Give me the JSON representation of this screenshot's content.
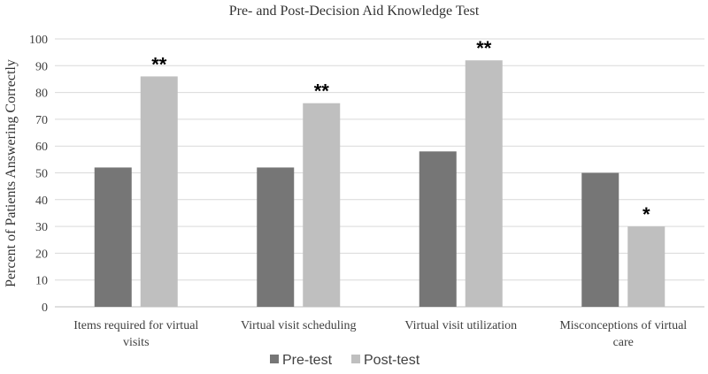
{
  "chart_data": {
    "type": "bar",
    "title": "Pre- and Post-Decision Aid Knowledge Test",
    "ylabel": "Percent of Patients Answering Correctly",
    "xlabel": "",
    "ylim": [
      0,
      100
    ],
    "yticks": [
      "0",
      "10",
      "20",
      "30",
      "40",
      "50",
      "60",
      "70",
      "80",
      "90",
      "100"
    ],
    "categories": [
      [
        "Items required for virtual",
        "visits"
      ],
      [
        "Virtual visit scheduling"
      ],
      [
        "Virtual visit utilization"
      ],
      [
        "Misconceptions of virtual",
        "care"
      ]
    ],
    "series": [
      {
        "name": "Pre-test",
        "color": "#767676",
        "values": [
          52,
          52,
          58,
          50
        ]
      },
      {
        "name": "Post-test",
        "color": "#bfbfbf",
        "values": [
          86,
          76,
          92,
          30
        ]
      }
    ],
    "significance": [
      "**",
      "**",
      "**",
      "*"
    ],
    "grid": true,
    "legend_position": "bottom-center"
  }
}
